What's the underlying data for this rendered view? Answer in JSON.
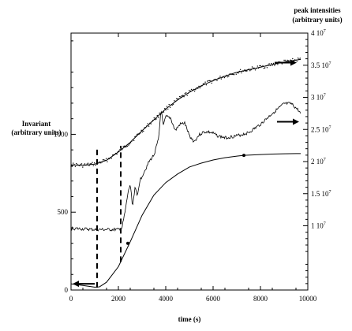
{
  "chart_data": {
    "type": "line",
    "xlabel": "time (s)",
    "ylabel_left": [
      "Invariant",
      "(arbitrary units)"
    ],
    "ylabel_right": [
      "peak intensities",
      "(arbitrary units)"
    ],
    "xlim": [
      0,
      10000
    ],
    "ylim_left": [
      0,
      1650
    ],
    "ylim_right": [
      0,
      40000000
    ],
    "x_ticks": [
      "0",
      "2000",
      "4000",
      "6000",
      "8000",
      "10000"
    ],
    "y_ticks_left": [
      "0",
      "500",
      "1000"
    ],
    "y_ticks_right": [
      "1 10^7",
      "1.5 10^7",
      "2 10^7",
      "2.5 10^7",
      "3 10^7",
      "3.5 10^7",
      "4 10^7"
    ],
    "dashed_lines_x": [
      1100,
      2100
    ],
    "series": [
      {
        "axis": "right",
        "style": "dotted-with-fit",
        "points": [
          [
            0,
            19500000
          ],
          [
            500,
            19400000
          ],
          [
            1000,
            19600000
          ],
          [
            1500,
            20200000
          ],
          [
            2000,
            21500000
          ],
          [
            2500,
            23000000
          ],
          [
            3000,
            24800000
          ],
          [
            3500,
            26500000
          ],
          [
            4000,
            28200000
          ],
          [
            4500,
            29600000
          ],
          [
            5000,
            30800000
          ],
          [
            5500,
            31800000
          ],
          [
            6000,
            32600000
          ],
          [
            6500,
            33300000
          ],
          [
            7000,
            33900000
          ],
          [
            7500,
            34300000
          ],
          [
            8000,
            34700000
          ],
          [
            8500,
            35100000
          ],
          [
            9000,
            35500000
          ],
          [
            9500,
            35800000
          ],
          [
            9700,
            35900000
          ]
        ]
      },
      {
        "axis": "right",
        "style": "noisy-line",
        "points": [
          [
            0,
            9600000
          ],
          [
            1000,
            9400000
          ],
          [
            2000,
            9400000
          ],
          [
            2150,
            9600000
          ],
          [
            2300,
            12500000
          ],
          [
            2400,
            15000000
          ],
          [
            2500,
            16500000
          ],
          [
            2600,
            13000000
          ],
          [
            2700,
            16000000
          ],
          [
            2800,
            14500000
          ],
          [
            2900,
            17000000
          ],
          [
            3100,
            18500000
          ],
          [
            3300,
            20000000
          ],
          [
            3500,
            21000000
          ],
          [
            3700,
            23500000
          ],
          [
            3800,
            28200000
          ],
          [
            3900,
            25500000
          ],
          [
            4000,
            27000000
          ],
          [
            4200,
            26800000
          ],
          [
            4400,
            24800000
          ],
          [
            4600,
            25800000
          ],
          [
            4800,
            26000000
          ],
          [
            5000,
            24000000
          ],
          [
            5200,
            23100000
          ],
          [
            5400,
            24100000
          ],
          [
            5600,
            24600000
          ],
          [
            5800,
            24600000
          ],
          [
            6000,
            24400000
          ],
          [
            6200,
            24000000
          ],
          [
            6500,
            23700000
          ],
          [
            7000,
            24000000
          ],
          [
            7500,
            24500000
          ],
          [
            8000,
            25800000
          ],
          [
            8500,
            27500000
          ],
          [
            9000,
            29000000
          ],
          [
            9300,
            29000000
          ],
          [
            9600,
            28000000
          ],
          [
            9700,
            27400000
          ]
        ]
      },
      {
        "axis": "left",
        "style": "line-with-markers",
        "points": [
          [
            0,
            40
          ],
          [
            1000,
            18
          ],
          [
            1200,
            20
          ],
          [
            1500,
            50
          ],
          [
            2000,
            150
          ],
          [
            2500,
            310
          ],
          [
            3000,
            480
          ],
          [
            3500,
            610
          ],
          [
            4000,
            690
          ],
          [
            4500,
            745
          ],
          [
            5000,
            790
          ],
          [
            5500,
            815
          ],
          [
            6000,
            835
          ],
          [
            6500,
            850
          ],
          [
            7000,
            860
          ],
          [
            7300,
            865
          ],
          [
            8000,
            870
          ],
          [
            8500,
            873
          ],
          [
            9000,
            875
          ],
          [
            9500,
            876
          ],
          [
            9700,
            876
          ]
        ],
        "markers": [
          [
            2400,
            300
          ],
          [
            7300,
            865
          ]
        ]
      }
    ],
    "annotations": [
      {
        "kind": "arrow-left",
        "at_x": 600,
        "at_y_left": 40
      },
      {
        "kind": "arrow-right",
        "at_x": 9000,
        "at_y_right": 35400000
      },
      {
        "kind": "arrow-right",
        "at_x": 9100,
        "at_y_right": 26200000
      }
    ]
  }
}
